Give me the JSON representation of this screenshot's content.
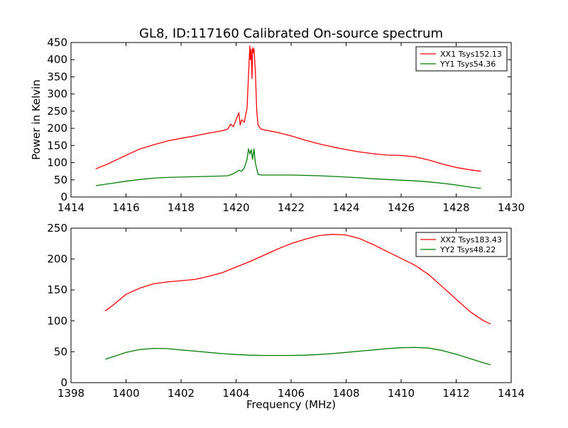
{
  "figure": {
    "title": "GL8, ID:117160 Calibrated On-source spectrum",
    "xlabel": "Frequency (MHz)",
    "ylabel": "Power in Kelvin"
  },
  "colors": {
    "XX": "#ff0000",
    "YY": "#008000",
    "axes": "#000000",
    "background": "#ffffff"
  },
  "chart_data": [
    {
      "type": "line",
      "panel": "top",
      "xlim": [
        1414,
        1430
      ],
      "ylim": [
        0,
        450
      ],
      "xticks": [
        1414,
        1416,
        1418,
        1420,
        1422,
        1424,
        1426,
        1428,
        1430
      ],
      "yticks": [
        0,
        50,
        100,
        150,
        200,
        250,
        300,
        350,
        400,
        450
      ],
      "grid": false,
      "legend_position": "top-right",
      "ylabel": "Power in Kelvin",
      "series": [
        {
          "name": "XX1 Tsys152.13",
          "color": "#ff0000",
          "x": [
            1414.9,
            1415.3,
            1415.7,
            1416.1,
            1416.5,
            1417.0,
            1417.5,
            1418.0,
            1418.5,
            1419.0,
            1419.5,
            1419.7,
            1419.8,
            1419.9,
            1420.0,
            1420.1,
            1420.15,
            1420.2,
            1420.3,
            1420.4,
            1420.45,
            1420.5,
            1420.52,
            1420.55,
            1420.58,
            1420.6,
            1420.62,
            1420.65,
            1420.7,
            1420.75,
            1420.8,
            1420.9,
            1421.0,
            1421.5,
            1422.0,
            1422.5,
            1423.0,
            1423.5,
            1424.0,
            1424.5,
            1425.0,
            1425.5,
            1426.0,
            1426.5,
            1427.0,
            1427.5,
            1428.0,
            1428.5,
            1428.9
          ],
          "y": [
            82,
            95,
            110,
            125,
            140,
            152,
            163,
            171,
            178,
            186,
            193,
            198,
            212,
            205,
            225,
            245,
            210,
            225,
            218,
            260,
            350,
            440,
            400,
            430,
            345,
            435,
            420,
            432,
            370,
            250,
            210,
            198,
            196,
            188,
            178,
            166,
            155,
            146,
            138,
            131,
            126,
            122,
            121,
            117,
            108,
            96,
            86,
            79,
            75
          ]
        },
        {
          "name": "YY1 Tsys54.36",
          "color": "#008000",
          "x": [
            1414.9,
            1415.5,
            1416.0,
            1416.5,
            1417.0,
            1417.5,
            1418.0,
            1418.5,
            1419.0,
            1419.5,
            1419.7,
            1419.9,
            1420.0,
            1420.1,
            1420.2,
            1420.3,
            1420.4,
            1420.45,
            1420.5,
            1420.55,
            1420.6,
            1420.65,
            1420.7,
            1420.8,
            1420.9,
            1421.0,
            1421.5,
            1422.0,
            1422.5,
            1423.0,
            1423.5,
            1424.0,
            1424.5,
            1425.0,
            1425.5,
            1426.0,
            1426.5,
            1427.0,
            1427.5,
            1428.0,
            1428.5,
            1428.9
          ],
          "y": [
            33,
            40,
            46,
            51,
            55,
            57,
            58,
            59,
            60,
            61,
            62,
            68,
            72,
            78,
            75,
            85,
            110,
            140,
            125,
            138,
            110,
            140,
            100,
            66,
            64,
            64,
            64,
            64,
            63,
            62,
            60,
            58,
            56,
            53,
            51,
            49,
            47,
            44,
            40,
            35,
            29,
            25
          ]
        }
      ]
    },
    {
      "type": "line",
      "panel": "bottom",
      "xlim": [
        1398,
        1414
      ],
      "ylim": [
        0,
        250
      ],
      "xticks": [
        1398,
        1400,
        1402,
        1404,
        1406,
        1408,
        1410,
        1412,
        1414
      ],
      "yticks": [
        0,
        50,
        100,
        150,
        200,
        250
      ],
      "grid": false,
      "legend_position": "top-right",
      "xlabel": "Frequency (MHz)",
      "series": [
        {
          "name": "XX2 Tsys183.43",
          "color": "#ff0000",
          "x": [
            1399.25,
            1399.6,
            1400.0,
            1400.5,
            1401.0,
            1401.5,
            1402.0,
            1402.5,
            1403.0,
            1403.5,
            1404.0,
            1404.5,
            1405.0,
            1405.5,
            1406.0,
            1406.5,
            1407.0,
            1407.5,
            1408.0,
            1408.5,
            1409.0,
            1409.5,
            1410.0,
            1410.5,
            1411.0,
            1411.5,
            1412.0,
            1412.5,
            1413.0,
            1413.25
          ],
          "y": [
            116,
            128,
            143,
            153,
            160,
            163,
            165,
            167,
            172,
            178,
            187,
            196,
            206,
            216,
            225,
            232,
            238,
            240,
            239,
            233,
            223,
            212,
            201,
            190,
            175,
            155,
            135,
            115,
            100,
            95
          ]
        },
        {
          "name": "YY2 Tsys48.22",
          "color": "#008000",
          "x": [
            1399.25,
            1399.6,
            1400.0,
            1400.5,
            1401.0,
            1401.5,
            1402.0,
            1402.5,
            1403.0,
            1403.5,
            1404.0,
            1404.5,
            1405.0,
            1405.5,
            1406.0,
            1406.5,
            1407.0,
            1407.5,
            1408.0,
            1408.5,
            1409.0,
            1409.5,
            1410.0,
            1410.5,
            1411.0,
            1411.5,
            1412.0,
            1412.5,
            1413.0,
            1413.25
          ],
          "y": [
            38,
            43,
            49,
            53.5,
            55.5,
            55,
            53,
            51,
            49,
            47,
            45.5,
            44.5,
            44,
            44,
            44,
            44.5,
            45.5,
            47,
            49,
            51,
            53,
            55,
            56.5,
            57,
            56,
            52,
            46,
            39,
            32,
            29
          ]
        }
      ]
    }
  ]
}
